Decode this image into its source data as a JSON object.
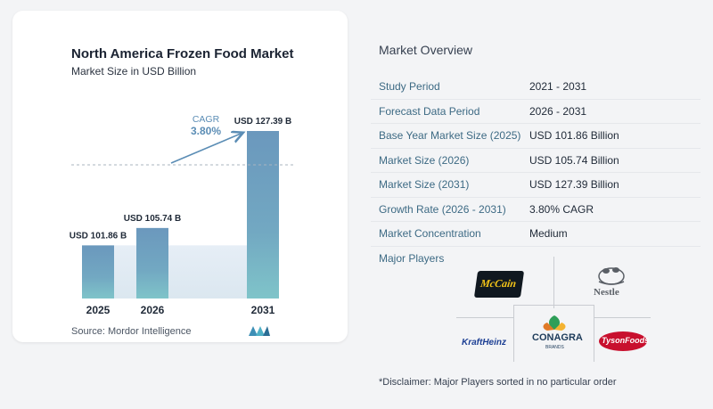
{
  "chart": {
    "title": "North America Frozen Food Market",
    "subtitle": "Market Size in USD Billion",
    "source": "Source:  Mordor Intelligence",
    "cagr_label": "CAGR",
    "cagr_value": "3.80%"
  },
  "chart_data": {
    "type": "bar",
    "categories": [
      "2025",
      "2026",
      "2031"
    ],
    "values": [
      101.86,
      105.74,
      127.39
    ],
    "data_labels": [
      "USD 101.86 B",
      "USD 105.74 B",
      "USD 127.39 B"
    ],
    "title": "North America Frozen Food Market",
    "subtitle": "Market Size in USD Billion",
    "xlabel": "",
    "ylabel": "",
    "grid": false,
    "bar_color": "#6b98bd"
  },
  "overview": {
    "title": "Market Overview",
    "rows": [
      {
        "label": "Study Period",
        "value": "2021 - 2031"
      },
      {
        "label": "Forecast Data Period",
        "value": "2026 - 2031"
      },
      {
        "label": "Base Year Market Size (2025)",
        "value": "USD 101.86 Billion"
      },
      {
        "label": "Market Size (2026)",
        "value": "USD 105.74 Billion"
      },
      {
        "label": "Market Size (2031)",
        "value": "USD 127.39 Billion"
      },
      {
        "label": "Growth Rate (2026 - 2031)",
        "value": "3.80% CAGR"
      },
      {
        "label": "Market Concentration",
        "value": "Medium"
      }
    ]
  },
  "players": {
    "label": "Major Players",
    "mccain": "McCain",
    "nestle": "Nestle",
    "conagra": "CONAGRA",
    "conagra_sub": "BRANDS",
    "kraft": "KraftHeinz",
    "tyson": "TysonFoods"
  },
  "disclaimer": "*Disclaimer: Major Players sorted in no particular order",
  "colors": {
    "bar": "#6b98bd",
    "bar_bottom": "#7fc4c9",
    "label_blue": "#3d6a84",
    "cagr": "#5b8db5"
  }
}
